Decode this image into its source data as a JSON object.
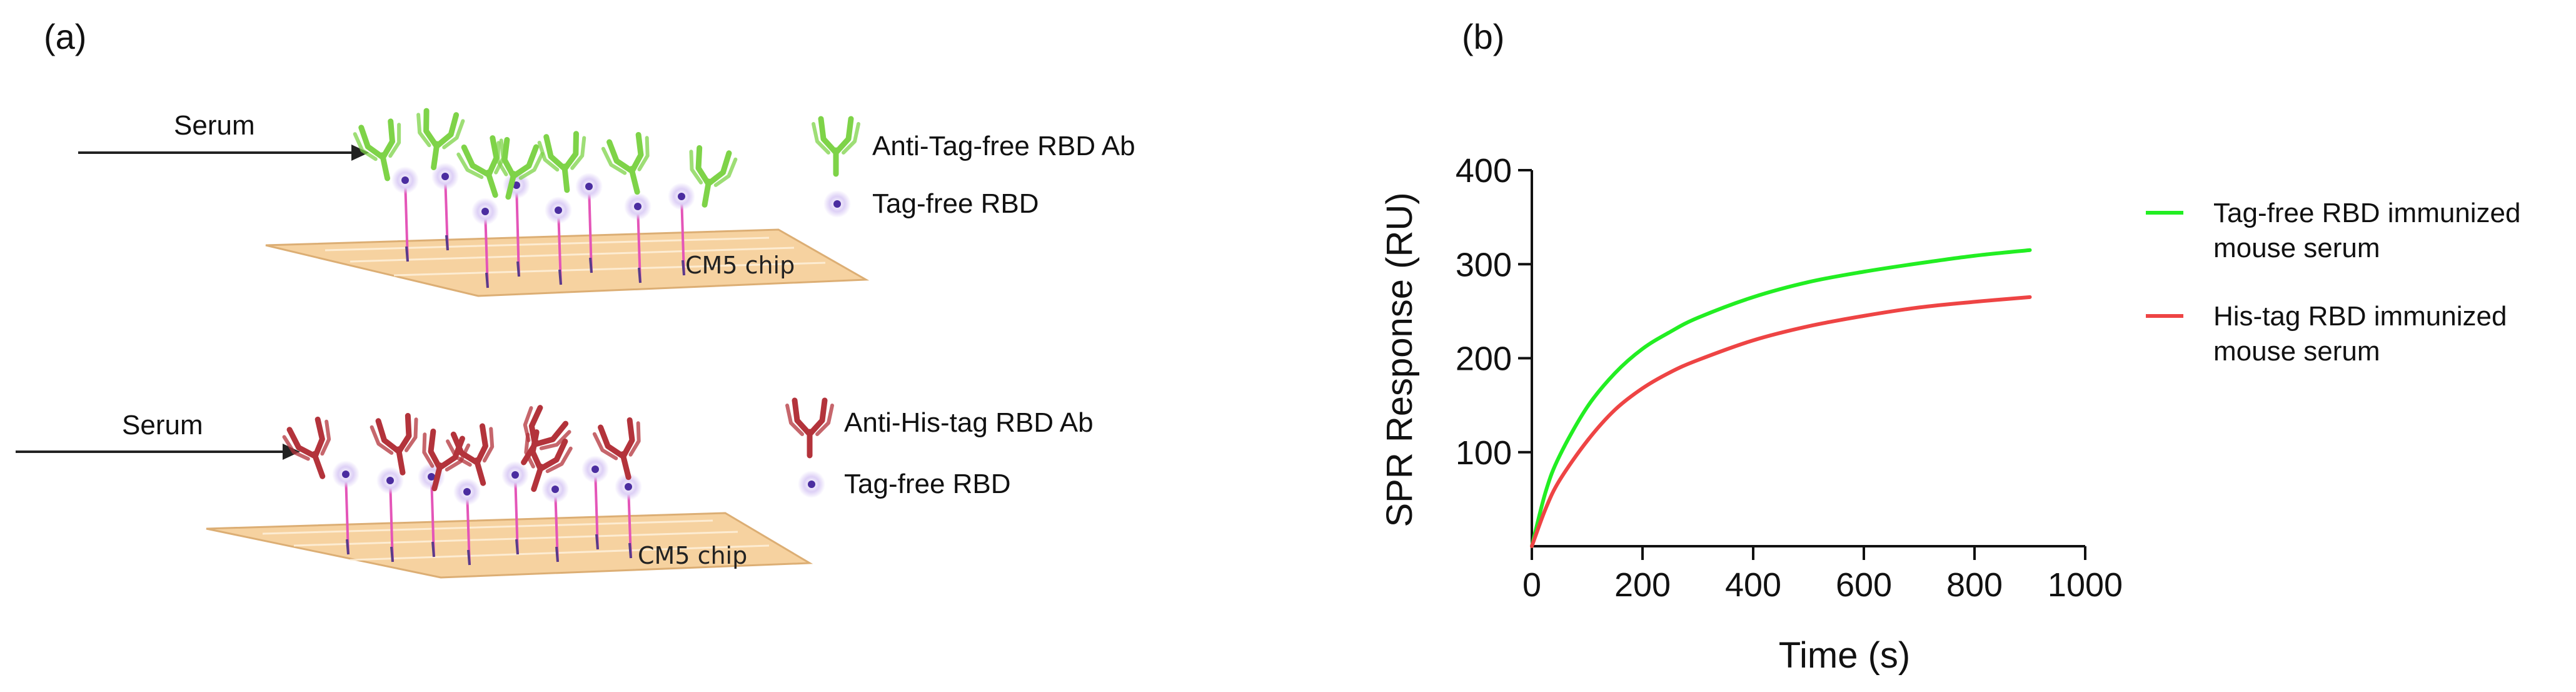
{
  "panel_a": {
    "label": "(a)",
    "top": {
      "serum_label": "Serum",
      "chip_label": "CM5 chip",
      "legend_antibody": "Anti-Tag-free RBD Ab",
      "legend_rbd": "Tag-free RBD",
      "antibody_color": "#7ed348",
      "tether_color": "#e455b8"
    },
    "bottom": {
      "serum_label": "Serum",
      "chip_label": "CM5 chip",
      "legend_antibody": "Anti-His-tag RBD Ab",
      "legend_rbd": "Tag-free RBD",
      "antibody_color": "#b3333b",
      "tether_color": "#e455b8"
    },
    "chip_color": "#f6d2a0",
    "rbd_color": "#9a7bd8"
  },
  "panel_b": {
    "label": "(b)"
  },
  "chart_data": {
    "type": "line",
    "title": "",
    "xlabel": "Time (s)",
    "ylabel": "SPR Response (RU)",
    "xlim": [
      0,
      1000
    ],
    "ylim": [
      0,
      400
    ],
    "x_ticks": [
      0,
      200,
      400,
      600,
      800,
      1000
    ],
    "y_ticks": [
      100,
      200,
      300,
      400
    ],
    "legend_position": "right",
    "series": [
      {
        "name": "Tag-free RBD immunized mouse serum",
        "name_lines": [
          "Tag-free RBD immunized",
          "mouse serum"
        ],
        "color": "#22ee22",
        "x": [
          0,
          25,
          50,
          100,
          150,
          200,
          250,
          300,
          400,
          500,
          600,
          700,
          800,
          900
        ],
        "y": [
          0,
          58,
          96,
          148,
          184,
          210,
          228,
          243,
          265,
          281,
          292,
          301,
          309,
          315
        ]
      },
      {
        "name": "His-tag RBD immunized mouse serum",
        "name_lines": [
          "His-tag RBD immunized",
          "mouse serum"
        ],
        "color": "#ee4444",
        "x": [
          0,
          25,
          50,
          100,
          150,
          200,
          250,
          300,
          400,
          500,
          600,
          700,
          800,
          900
        ],
        "y": [
          0,
          40,
          70,
          112,
          145,
          168,
          185,
          198,
          219,
          234,
          245,
          254,
          260,
          265
        ]
      }
    ]
  }
}
